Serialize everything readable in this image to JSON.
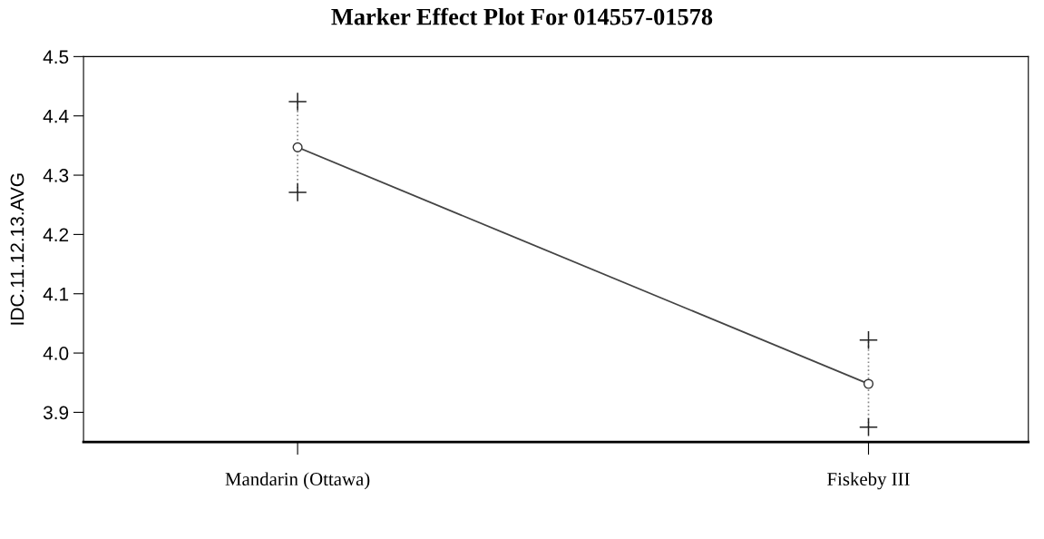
{
  "chart_data": {
    "type": "line",
    "title": "Marker Effect Plot For 014557-01578",
    "ylabel": "IDC.11.12.13.AVG",
    "categories": [
      "Mandarin (Ottawa)",
      "Fiskeby III"
    ],
    "series": [
      {
        "color": "#444444",
        "values": [
          4.347,
          3.948
        ],
        "errors": [
          [
            4.271,
            4.424
          ],
          [
            3.875,
            4.022
          ]
        ]
      }
    ],
    "ylim": [
      3.85,
      4.5
    ],
    "yticks": [
      3.9,
      {
        "value": 4.0,
        "label": "4.0"
      },
      4.1,
      4.2,
      4.3,
      4.4,
      4.5
    ],
    "marker": "circle",
    "line_style": "solid",
    "grid": false,
    "legend": false
  }
}
